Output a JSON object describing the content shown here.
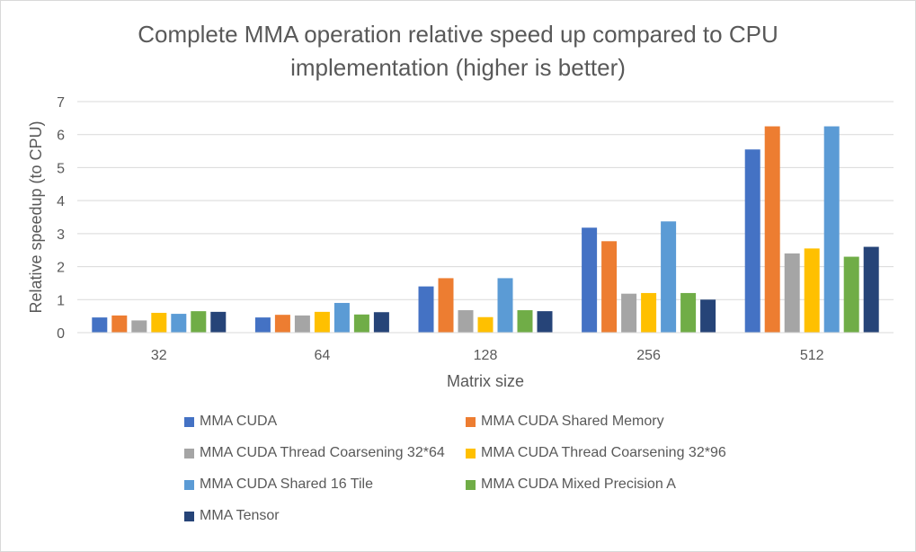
{
  "chart_data": {
    "type": "bar",
    "title_lines": [
      "Complete MMA operation relative speed up compared to CPU",
      "implementation (higher is better)"
    ],
    "xlabel": "Matrix size",
    "ylabel": "Relative speedup (to CPU)",
    "ylim": [
      0,
      7
    ],
    "yticks": [
      "0",
      "1",
      "2",
      "3",
      "4",
      "5",
      "6",
      "7"
    ],
    "grid": true,
    "legend_position": "bottom",
    "categories": [
      "32",
      "64",
      "128",
      "256",
      "512"
    ],
    "series": [
      {
        "name": "MMA CUDA",
        "color": "#4472c4",
        "values": [
          0.46,
          0.46,
          1.4,
          3.18,
          5.55
        ]
      },
      {
        "name": "MMA CUDA Shared Memory",
        "color": "#ed7d31",
        "values": [
          0.52,
          0.54,
          1.65,
          2.77,
          6.25
        ]
      },
      {
        "name": "MMA CUDA Thread Coarsening 32*64",
        "color": "#a5a5a5",
        "values": [
          0.37,
          0.52,
          0.68,
          1.18,
          2.4
        ]
      },
      {
        "name": "MMA CUDA Thread Coarsening 32*96",
        "color": "#ffc000",
        "values": [
          0.6,
          0.63,
          0.47,
          1.2,
          2.55
        ]
      },
      {
        "name": "MMA CUDA Shared 16 Tile",
        "color": "#5b9bd5",
        "values": [
          0.57,
          0.9,
          1.65,
          3.37,
          6.25
        ]
      },
      {
        "name": "MMA CUDA Mixed Precision A",
        "color": "#70ad47",
        "values": [
          0.65,
          0.55,
          0.68,
          1.2,
          2.3
        ]
      },
      {
        "name": "MMA Tensor",
        "color": "#264478",
        "values": [
          0.63,
          0.62,
          0.65,
          1.0,
          2.6
        ]
      }
    ]
  }
}
